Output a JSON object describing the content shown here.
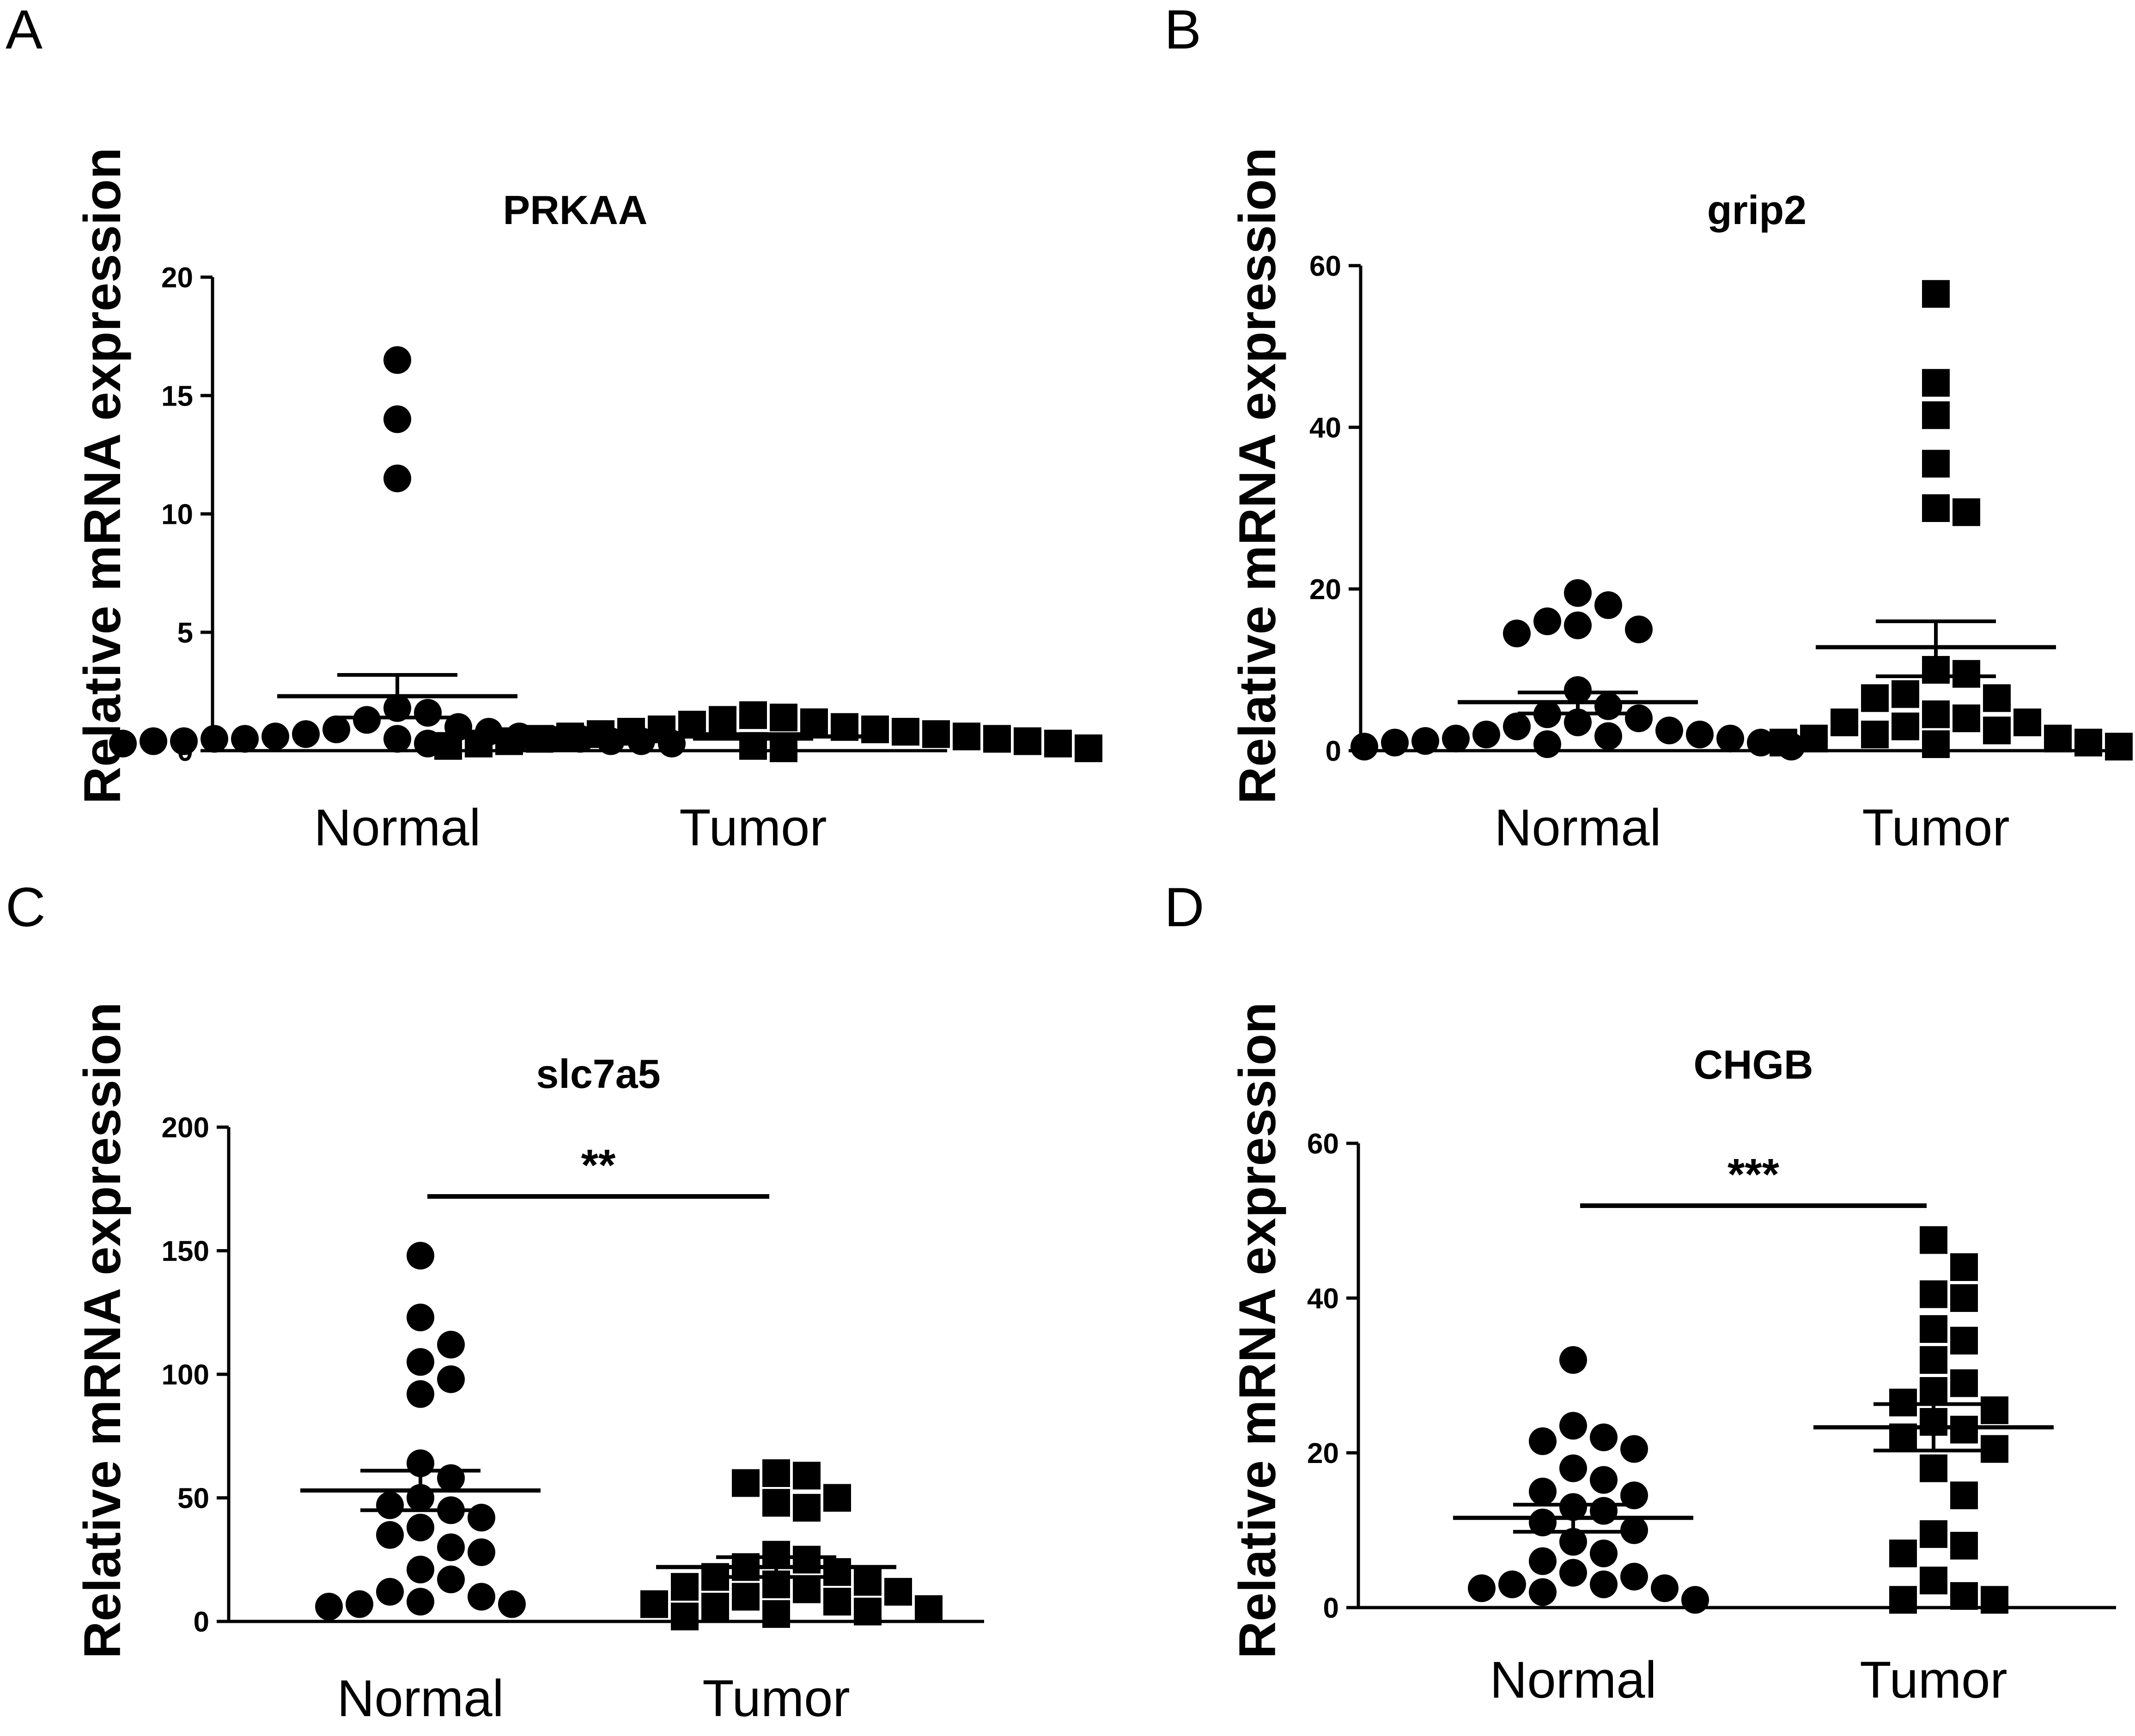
{
  "figure": {
    "background": "#ffffff",
    "ink": "#000000"
  },
  "chart_data": [
    {
      "panel": "A",
      "type": "scatter",
      "title": "PRKAA",
      "ylabel": "Relative mRNA expression",
      "xlabel": "",
      "categories": [
        "Normal",
        "Tumor"
      ],
      "ylim": [
        0,
        20
      ],
      "yticks": [
        0,
        5,
        10,
        15,
        20
      ],
      "significance": null,
      "series": [
        {
          "name": "Normal",
          "marker": "circle",
          "values": [
            16.5,
            14.0,
            11.5,
            1.8,
            1.6,
            1.3,
            1.0,
            0.9,
            0.8,
            0.7,
            0.6,
            0.6,
            0.5,
            0.5,
            0.5,
            0.5,
            0.5,
            0.4,
            0.4,
            0.4,
            0.4,
            0.3,
            0.3,
            0.3
          ],
          "mean": 2.3,
          "sem_low": 1.4,
          "sem_high": 3.2
        },
        {
          "name": "Tumor",
          "marker": "square",
          "values": [
            1.5,
            1.4,
            1.3,
            1.2,
            1.1,
            1.0,
            0.9,
            0.9,
            0.8,
            0.8,
            0.7,
            0.7,
            0.6,
            0.6,
            0.5,
            0.5,
            0.4,
            0.4,
            0.3,
            0.3,
            0.2,
            0.2,
            0.1,
            0.1
          ],
          "mean": 0.6,
          "sem_low": 0.5,
          "sem_high": 0.7
        }
      ]
    },
    {
      "panel": "B",
      "type": "scatter",
      "title": "grip2",
      "ylabel": "Relative mRNA expression",
      "xlabel": "",
      "categories": [
        "Normal",
        "Tumor"
      ],
      "ylim": [
        0,
        60
      ],
      "yticks": [
        0,
        20,
        40,
        60
      ],
      "significance": null,
      "series": [
        {
          "name": "Normal",
          "marker": "circle",
          "values": [
            19.5,
            18.0,
            16.0,
            15.5,
            15.0,
            14.5,
            7.5,
            5.5,
            4.5,
            4.0,
            3.5,
            3.0,
            2.5,
            2.0,
            2.0,
            1.8,
            1.5,
            1.5,
            1.2,
            1.0,
            1.0,
            0.8,
            0.5,
            0.5
          ],
          "mean": 6.0,
          "sem_low": 4.6,
          "sem_high": 7.2
        },
        {
          "name": "Tumor",
          "marker": "square",
          "values": [
            56.5,
            45.5,
            41.5,
            35.5,
            30.0,
            29.5,
            10.0,
            9.5,
            7.0,
            6.5,
            6.5,
            4.5,
            4.0,
            3.5,
            3.5,
            3.0,
            2.5,
            2.0,
            1.5,
            1.5,
            1.0,
            1.0,
            0.8,
            0.5
          ],
          "mean": 12.8,
          "sem_low": 9.2,
          "sem_high": 16.0
        }
      ]
    },
    {
      "panel": "C",
      "type": "scatter",
      "title": "slc7a5",
      "ylabel": "Relative mRNA expression",
      "xlabel": "",
      "categories": [
        "Normal",
        "Tumor"
      ],
      "ylim": [
        0,
        200
      ],
      "yticks": [
        0,
        50,
        100,
        150,
        200
      ],
      "significance": "**",
      "series": [
        {
          "name": "Normal",
          "marker": "circle",
          "values": [
            148,
            123,
            112,
            105,
            98,
            92,
            64,
            58,
            50,
            47,
            45,
            42,
            38,
            35,
            30,
            28,
            21,
            17,
            12,
            10,
            8,
            7,
            7,
            6
          ],
          "mean": 53,
          "sem_low": 45,
          "sem_high": 61
        },
        {
          "name": "Tumor",
          "marker": "square",
          "values": [
            60,
            59,
            56,
            50,
            48,
            46,
            27,
            25,
            22,
            20,
            18,
            16,
            15,
            14,
            13,
            12,
            10,
            8,
            7,
            6,
            5,
            4,
            3,
            2
          ],
          "mean": 22,
          "sem_low": 18,
          "sem_high": 26
        }
      ]
    },
    {
      "panel": "D",
      "type": "scatter",
      "title": "CHGB",
      "ylabel": "Relative mRNA expression",
      "xlabel": "",
      "categories": [
        "Normal",
        "Tumor"
      ],
      "ylim": [
        0,
        60
      ],
      "yticks": [
        0,
        20,
        40,
        60
      ],
      "significance": "***",
      "series": [
        {
          "name": "Normal",
          "marker": "circle",
          "values": [
            32,
            23.5,
            22,
            21.5,
            20.5,
            18,
            16.5,
            15,
            14.5,
            13,
            12.5,
            11,
            10,
            8.5,
            7,
            6,
            4.5,
            4,
            3,
            3,
            2.5,
            2.5,
            2,
            1
          ],
          "mean": 11.6,
          "sem_low": 9.8,
          "sem_high": 13.3
        },
        {
          "name": "Tumor",
          "marker": "square",
          "values": [
            47.5,
            44,
            40.5,
            40,
            36,
            34.5,
            32,
            29,
            28,
            26.5,
            25.5,
            24,
            23,
            22,
            20.5,
            18,
            14.5,
            9.5,
            8,
            7,
            3.5,
            1.5,
            1,
            1
          ],
          "mean": 23.3,
          "sem_low": 20.3,
          "sem_high": 26.3
        }
      ]
    }
  ]
}
